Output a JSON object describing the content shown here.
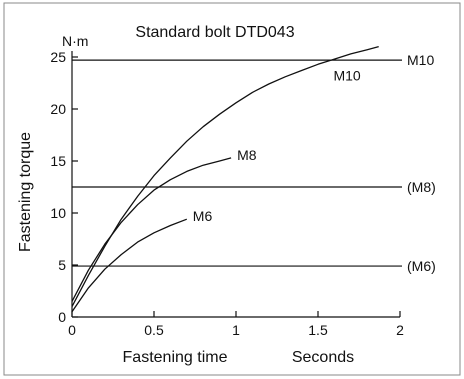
{
  "chart_data": {
    "type": "line",
    "title": "Standard bolt DTD043",
    "xlabel": "Fastening time",
    "xunit": "Seconds",
    "ylabel": "Fastening torque",
    "yunit": "N·m",
    "xlim": [
      0,
      2
    ],
    "ylim": [
      0,
      25
    ],
    "xticks": [
      "0",
      "0.5",
      "1",
      "1.5",
      "2"
    ],
    "yticks": [
      "0",
      "5",
      "10",
      "15",
      "20",
      "25"
    ],
    "grid": false,
    "series": [
      {
        "name": "M10",
        "x": [
          0,
          0.1,
          0.2,
          0.3,
          0.4,
          0.5,
          0.6,
          0.7,
          0.8,
          0.9,
          1.0,
          1.1,
          1.2,
          1.3,
          1.4,
          1.5,
          1.6,
          1.7,
          1.8,
          1.87
        ],
        "y": [
          1.0,
          4.0,
          6.8,
          9.4,
          11.6,
          13.6,
          15.3,
          16.9,
          18.3,
          19.5,
          20.6,
          21.6,
          22.4,
          23.1,
          23.7,
          24.3,
          24.8,
          25.3,
          25.7,
          26.0
        ]
      },
      {
        "name": "M8",
        "x": [
          0,
          0.1,
          0.2,
          0.3,
          0.4,
          0.5,
          0.6,
          0.7,
          0.8,
          0.9,
          0.97
        ],
        "y": [
          1.5,
          4.5,
          7.0,
          9.1,
          10.8,
          12.2,
          13.2,
          14.0,
          14.6,
          15.0,
          15.3
        ]
      },
      {
        "name": "M6",
        "x": [
          0,
          0.1,
          0.2,
          0.3,
          0.4,
          0.5,
          0.6,
          0.7
        ],
        "y": [
          0.5,
          2.8,
          4.6,
          6.0,
          7.2,
          8.1,
          8.8,
          9.4
        ]
      }
    ],
    "reference_lines": [
      {
        "label": "M10",
        "y": 24.7
      },
      {
        "label": "(M8)",
        "y": 12.5
      },
      {
        "label": "(M6)",
        "y": 4.9
      }
    ]
  }
}
